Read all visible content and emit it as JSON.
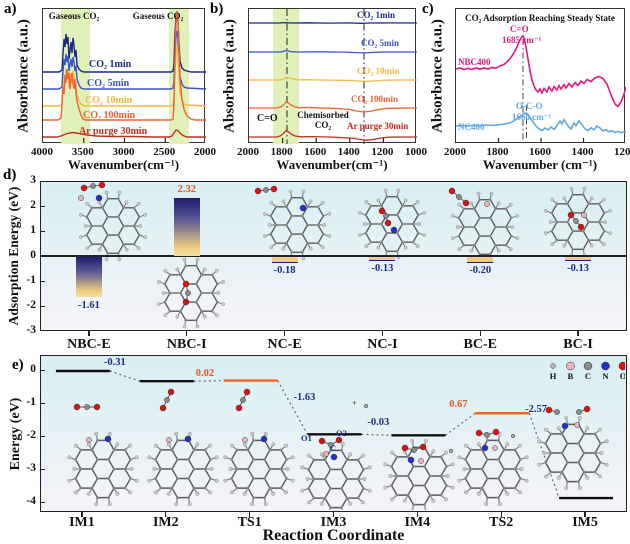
{
  "figure": {
    "tags": {
      "a": "a)",
      "b": "b)",
      "c": "c)",
      "d": "d)",
      "e": "e)"
    }
  },
  "colors": {
    "navy": "#1b2a80",
    "blue": "#3a55cc",
    "gold": "#f3b93f",
    "orange_red": "#ee6233",
    "dark_red": "#c22f1f",
    "magenta": "#e01a7d",
    "light_blue": "#5fa8e0",
    "band_green": "#dff0b8",
    "bar_navy": "#201d6e",
    "bar_gold": "#eecd80",
    "label_navy": "#1a2f7e",
    "label_orange": "#e8531e",
    "level_orange": "#f26322"
  },
  "chart_data": [
    {
      "panel": "a",
      "type": "line",
      "ylabel": "Absorbance (a.u.)",
      "xlabel": "Wavenumber(cm⁻¹)",
      "x_ticks": [
        "4000",
        "3500",
        "3000",
        "2500",
        "2000"
      ],
      "x_range": [
        4000,
        2000
      ],
      "band_label": "Gaseous CO₂",
      "highlight_bands_cm": [
        [
          3780,
          3430
        ],
        [
          2430,
          2200
        ]
      ],
      "series": [
        {
          "name": "CO₂ 1min",
          "color": "#1b2a80"
        },
        {
          "name": "CO₂ 5min",
          "color": "#3a55cc"
        },
        {
          "name": "CO₂ 10min",
          "color": "#f3b93f"
        },
        {
          "name": "CO₂ 100min",
          "color": "#ee6233"
        },
        {
          "name": "Ar purge 30min",
          "color": "#c22f1f"
        }
      ],
      "note": "gaseous CO2 features near 3700-3550 and 2349 cm-1 in all CO2 exposure curves; flat after Ar purge"
    },
    {
      "panel": "b",
      "type": "line",
      "ylabel": "Absorbance (a.u.)",
      "xlabel": "Wavenumber(cm⁻¹)",
      "x_ticks": [
        "2000",
        "1800",
        "1600",
        "1400",
        "1200",
        "1000"
      ],
      "x_range": [
        2000,
        1000
      ],
      "dash_lines_cm": [
        1685,
        1245
      ],
      "annotations": {
        "c_o": "C=O",
        "chemisorbed": [
          "Chemisorbed",
          "CO₂"
        ]
      },
      "series": [
        {
          "name": "CO₂ 1min",
          "color": "#1b2a80"
        },
        {
          "name": "CO₂ 5min",
          "color": "#3a55cc"
        },
        {
          "name": "CO₂ 10min",
          "color": "#f3b93f"
        },
        {
          "name": "CO₂ 100min",
          "color": "#ee6233"
        },
        {
          "name": "Ar purge 30min",
          "color": "#c22f1f"
        }
      ]
    },
    {
      "panel": "c",
      "type": "line",
      "title": "CO₂ Adsorption Reaching Steady State",
      "ylabel": "Absorbance (a.u.)",
      "xlabel": "Wavenumber (cm⁻¹)",
      "x_ticks": [
        "2000",
        "1800",
        "1600",
        "1400",
        "1200"
      ],
      "x_range": [
        2000,
        1200
      ],
      "series": [
        {
          "name": "NBC400",
          "color": "#e01a7d",
          "peak_label": "C=O",
          "peak_cm": "1685 cm⁻¹",
          "peak_position_cm": 1685
        },
        {
          "name": "NC400",
          "color": "#5fa8e0",
          "peak_label": "O-C-O",
          "peak_cm": "1660 cm⁻¹",
          "peak_position_cm": 1660
        }
      ]
    },
    {
      "panel": "d",
      "type": "bar",
      "ylabel": "Adsorption Energy (eV)",
      "ylim": [
        -3,
        3
      ],
      "categories": [
        "NBC-E",
        "NBC-I",
        "NC-E",
        "NC-I",
        "BC-E",
        "BC-I"
      ],
      "values": [
        -1.61,
        2.32,
        -0.18,
        -0.13,
        -0.2,
        -0.13
      ],
      "value_labels": [
        "-1.61",
        "2.32",
        "-0.18",
        "-0.13",
        "-0.20",
        "-0.13"
      ]
    },
    {
      "panel": "e",
      "type": "energy_profile",
      "ylabel": "Energy (eV)",
      "xlabel": "Reaction Coordinate",
      "ylim": [
        -4,
        0
      ],
      "categories": [
        "IM1",
        "IM2",
        "TS1",
        "IM3",
        "IM4",
        "TS2",
        "IM5"
      ],
      "levels_eV": [
        0,
        -0.31,
        -0.29,
        -1.92,
        -1.95,
        -1.28,
        -3.85
      ],
      "ts_indices": [
        2,
        5
      ],
      "step_labels": [
        "-0.31",
        "0.02",
        "-1.63",
        "-0.03",
        "0.67",
        "-2.57"
      ],
      "step_values": [
        -0.31,
        0.02,
        -1.63,
        -0.03,
        0.67,
        -2.57
      ],
      "annotations": {
        "o1": "O1",
        "o2": "O2",
        "c": "C",
        "plus": "+"
      },
      "atom_legend": [
        {
          "label": "H",
          "color": "#b9b9b9"
        },
        {
          "label": "B",
          "color": "#f0b0bc"
        },
        {
          "label": "C",
          "color": "#8b8b8b"
        },
        {
          "label": "N",
          "color": "#2030cf"
        },
        {
          "label": "O",
          "color": "#dd1111"
        }
      ]
    }
  ]
}
